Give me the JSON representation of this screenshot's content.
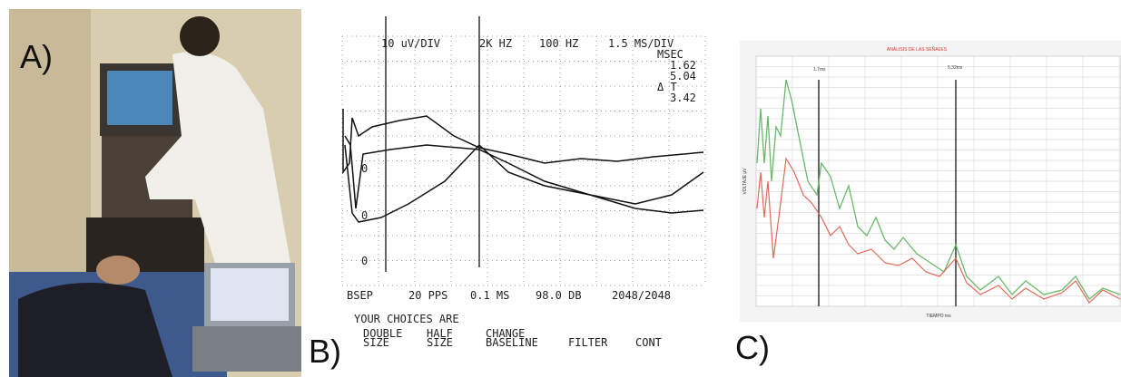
{
  "panel_a": {
    "label": "A)"
  },
  "panel_b": {
    "label": "B)",
    "header": [
      "10 uV/DIV",
      "2K HZ",
      "100 HZ",
      "1.5 MS/DIV"
    ],
    "readout": [
      "MSEC",
      "1.62",
      "5.04",
      "Δ T",
      "3.42"
    ],
    "markers": [
      "0",
      "0",
      "0"
    ],
    "status": [
      "BSEP",
      "20 PPS",
      "0.1 MS",
      "98.0 DB",
      "2048/2048"
    ],
    "prompt": "YOUR CHOICES ARE",
    "choices": [
      [
        "DOUBLE",
        "SIZE"
      ],
      [
        "HALF",
        "SIZE"
      ],
      [
        "CHANGE",
        "BASELINE"
      ],
      [
        "FILTER"
      ],
      [
        "CONT"
      ]
    ]
  },
  "panel_c": {
    "label": "C)",
    "title": "ANÁLISIS DE LAS SEÑALES",
    "cursors": [
      "1.7ms",
      "5.32ms"
    ],
    "x_axis_title": "TIEMPO ms",
    "y_axis_title": "VOLTAJE µV"
  }
}
